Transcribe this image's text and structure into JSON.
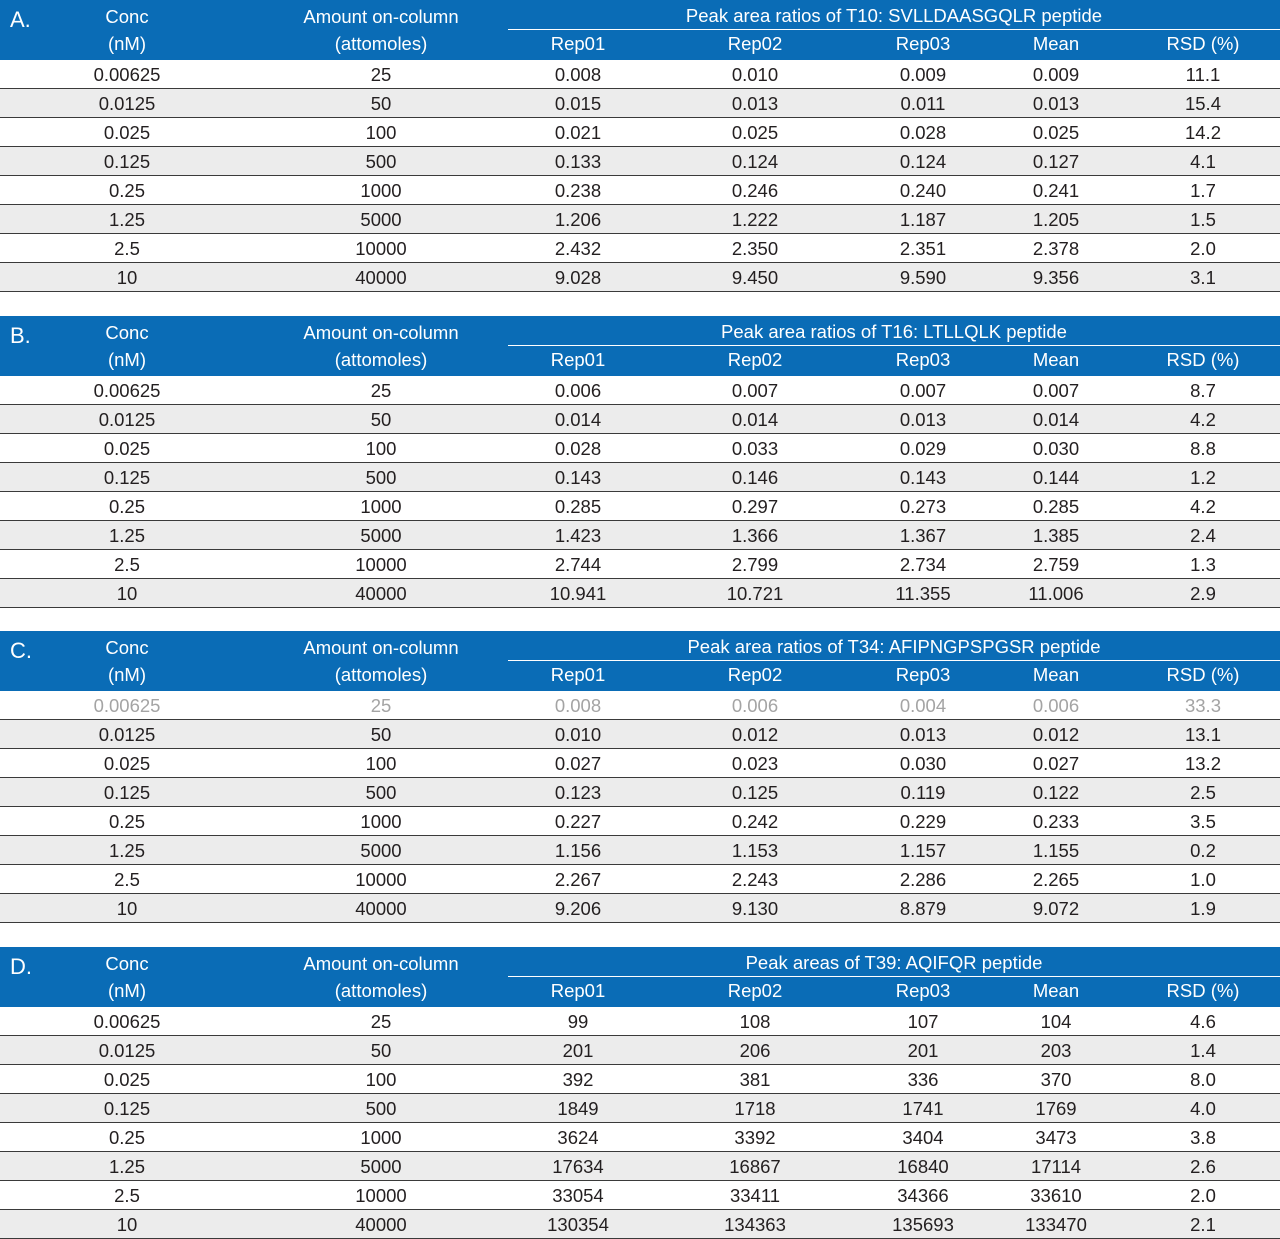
{
  "columns": {
    "conc": [
      "Conc",
      "(nM)"
    ],
    "amount": [
      "Amount on-column",
      "(attomoles)"
    ],
    "reps": [
      "Rep01",
      "Rep02",
      "Rep03",
      "Mean",
      "RSD (%)"
    ]
  },
  "tables": [
    {
      "label": "A.",
      "title": "Peak area ratios of T10: SVLLDAASGQLR peptide",
      "rows": [
        {
          "grey": false,
          "cells": [
            "0.00625",
            "25",
            "0.008",
            "0.010",
            "0.009",
            "0.009",
            "11.1"
          ]
        },
        {
          "grey": false,
          "cells": [
            "0.0125",
            "50",
            "0.015",
            "0.013",
            "0.011",
            "0.013",
            "15.4"
          ]
        },
        {
          "grey": false,
          "cells": [
            "0.025",
            "100",
            "0.021",
            "0.025",
            "0.028",
            "0.025",
            "14.2"
          ]
        },
        {
          "grey": false,
          "cells": [
            "0.125",
            "500",
            "0.133",
            "0.124",
            "0.124",
            "0.127",
            "4.1"
          ]
        },
        {
          "grey": false,
          "cells": [
            "0.25",
            "1000",
            "0.238",
            "0.246",
            "0.240",
            "0.241",
            "1.7"
          ]
        },
        {
          "grey": false,
          "cells": [
            "1.25",
            "5000",
            "1.206",
            "1.222",
            "1.187",
            "1.205",
            "1.5"
          ]
        },
        {
          "grey": false,
          "cells": [
            "2.5",
            "10000",
            "2.432",
            "2.350",
            "2.351",
            "2.378",
            "2.0"
          ]
        },
        {
          "grey": false,
          "cells": [
            "10",
            "40000",
            "9.028",
            "9.450",
            "9.590",
            "9.356",
            "3.1"
          ]
        }
      ]
    },
    {
      "label": "B.",
      "title": "Peak area ratios of T16: LTLLQLK peptide",
      "rows": [
        {
          "grey": false,
          "cells": [
            "0.00625",
            "25",
            "0.006",
            "0.007",
            "0.007",
            "0.007",
            "8.7"
          ]
        },
        {
          "grey": false,
          "cells": [
            "0.0125",
            "50",
            "0.014",
            "0.014",
            "0.013",
            "0.014",
            "4.2"
          ]
        },
        {
          "grey": false,
          "cells": [
            "0.025",
            "100",
            "0.028",
            "0.033",
            "0.029",
            "0.030",
            "8.8"
          ]
        },
        {
          "grey": false,
          "cells": [
            "0.125",
            "500",
            "0.143",
            "0.146",
            "0.143",
            "0.144",
            "1.2"
          ]
        },
        {
          "grey": false,
          "cells": [
            "0.25",
            "1000",
            "0.285",
            "0.297",
            "0.273",
            "0.285",
            "4.2"
          ]
        },
        {
          "grey": false,
          "cells": [
            "1.25",
            "5000",
            "1.423",
            "1.366",
            "1.367",
            "1.385",
            "2.4"
          ]
        },
        {
          "grey": false,
          "cells": [
            "2.5",
            "10000",
            "2.744",
            "2.799",
            "2.734",
            "2.759",
            "1.3"
          ]
        },
        {
          "grey": false,
          "cells": [
            "10",
            "40000",
            "10.941",
            "10.721",
            "11.355",
            "11.006",
            "2.9"
          ]
        }
      ]
    },
    {
      "label": "C.",
      "title": "Peak area ratios of T34: AFIPNGPSPGSR peptide",
      "rows": [
        {
          "grey": true,
          "cells": [
            "0.00625",
            "25",
            "0.008",
            "0.006",
            "0.004",
            "0.006",
            "33.3"
          ]
        },
        {
          "grey": false,
          "cells": [
            "0.0125",
            "50",
            "0.010",
            "0.012",
            "0.013",
            "0.012",
            "13.1"
          ]
        },
        {
          "grey": false,
          "cells": [
            "0.025",
            "100",
            "0.027",
            "0.023",
            "0.030",
            "0.027",
            "13.2"
          ]
        },
        {
          "grey": false,
          "cells": [
            "0.125",
            "500",
            "0.123",
            "0.125",
            "0.119",
            "0.122",
            "2.5"
          ]
        },
        {
          "grey": false,
          "cells": [
            "0.25",
            "1000",
            "0.227",
            "0.242",
            "0.229",
            "0.233",
            "3.5"
          ]
        },
        {
          "grey": false,
          "cells": [
            "1.25",
            "5000",
            "1.156",
            "1.153",
            "1.157",
            "1.155",
            "0.2"
          ]
        },
        {
          "grey": false,
          "cells": [
            "2.5",
            "10000",
            "2.267",
            "2.243",
            "2.286",
            "2.265",
            "1.0"
          ]
        },
        {
          "grey": false,
          "cells": [
            "10",
            "40000",
            "9.206",
            "9.130",
            "8.879",
            "9.072",
            "1.9"
          ]
        }
      ]
    },
    {
      "label": "D.",
      "title": "Peak areas of T39: AQIFQR peptide",
      "rows": [
        {
          "grey": false,
          "cells": [
            "0.00625",
            "25",
            "99",
            "108",
            "107",
            "104",
            "4.6"
          ]
        },
        {
          "grey": false,
          "cells": [
            "0.0125",
            "50",
            "201",
            "206",
            "201",
            "203",
            "1.4"
          ]
        },
        {
          "grey": false,
          "cells": [
            "0.025",
            "100",
            "392",
            "381",
            "336",
            "370",
            "8.0"
          ]
        },
        {
          "grey": false,
          "cells": [
            "0.125",
            "500",
            "1849",
            "1718",
            "1741",
            "1769",
            "4.0"
          ]
        },
        {
          "grey": false,
          "cells": [
            "0.25",
            "1000",
            "3624",
            "3392",
            "3404",
            "3473",
            "3.8"
          ]
        },
        {
          "grey": false,
          "cells": [
            "1.25",
            "5000",
            "17634",
            "16867",
            "16840",
            "17114",
            "2.6"
          ]
        },
        {
          "grey": false,
          "cells": [
            "2.5",
            "10000",
            "33054",
            "33411",
            "34366",
            "33610",
            "2.0"
          ]
        },
        {
          "grey": false,
          "cells": [
            "10",
            "40000",
            "130354",
            "134363",
            "135693",
            "133470",
            "2.1"
          ]
        }
      ]
    }
  ],
  "colors": {
    "header_bg": "#0a6cb6",
    "header_text": "#ffffff",
    "alt_row_bg": "#ececec",
    "excluded_row_text": "#a4a4a4"
  }
}
